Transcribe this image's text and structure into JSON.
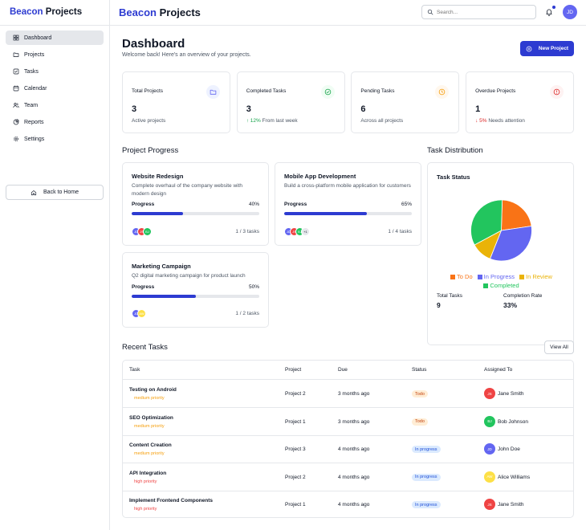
{
  "app": {
    "brand_a": "Beacon",
    "brand_b": "Projects",
    "accent": "#2d3bd1"
  },
  "sidebar": {
    "items": [
      {
        "label": "Dashboard",
        "icon": "grid-icon",
        "active": true
      },
      {
        "label": "Projects",
        "icon": "folder-icon"
      },
      {
        "label": "Tasks",
        "icon": "check-square-icon"
      },
      {
        "label": "Calendar",
        "icon": "calendar-icon"
      },
      {
        "label": "Team",
        "icon": "users-icon"
      },
      {
        "label": "Reports",
        "icon": "pie-chart-icon"
      },
      {
        "label": "Settings",
        "icon": "gear-icon"
      }
    ],
    "back_label": "Back to Home"
  },
  "header": {
    "search_placeholder": "Search...",
    "user_initials": "JD"
  },
  "page": {
    "title": "Dashboard",
    "subtitle": "Welcome back! Here's an overview of your projects.",
    "new_project_label": "New Project"
  },
  "stats": [
    {
      "label": "Total Projects",
      "value": "3",
      "sub": "Active projects",
      "sub_color": "#4b5563",
      "icon": "folder-icon",
      "icon_color": "#6366f1",
      "icon_bg": "#eef2ff"
    },
    {
      "label": "Completed Tasks",
      "value": "3",
      "sub_trend": "↑ 12%",
      "sub": "From last week",
      "sub_color": "#16a34a",
      "icon": "check-circle-icon",
      "icon_color": "#16a34a",
      "icon_bg": "#f0fdf4"
    },
    {
      "label": "Pending Tasks",
      "value": "6",
      "sub": "Across all projects",
      "sub_color": "#4b5563",
      "icon": "clock-icon",
      "icon_color": "#f59e0b",
      "icon_bg": "#fff7ed"
    },
    {
      "label": "Overdue Projects",
      "value": "1",
      "sub_trend": "↓ 5%",
      "sub": "Needs attention",
      "sub_color": "#dc2626",
      "icon": "alert-circle-icon",
      "icon_color": "#dc2626",
      "icon_bg": "#fef2f2"
    }
  ],
  "project_progress": {
    "title": "Project Progress",
    "progress_label": "Progress",
    "projects": [
      {
        "name": "Website Redesign",
        "desc": "Complete overhaul of the company website with modern design",
        "progress": 40,
        "progress_text": "40%",
        "tasks": "1 / 3 tasks",
        "avatars": [
          {
            "i": "JD",
            "c": "#6366f1"
          },
          {
            "i": "JS",
            "c": "#ef4444"
          },
          {
            "i": "BJ",
            "c": "#22c55e"
          }
        ]
      },
      {
        "name": "Mobile App Development",
        "desc": "Build a cross-platform mobile application for customers",
        "progress": 65,
        "progress_text": "65%",
        "tasks": "1 / 4 tasks",
        "avatars": [
          {
            "i": "JD",
            "c": "#6366f1"
          },
          {
            "i": "JS",
            "c": "#ef4444"
          },
          {
            "i": "BJ",
            "c": "#22c55e"
          }
        ],
        "more": "+1"
      },
      {
        "name": "Marketing Campaign",
        "desc": "Q2 digital marketing campaign for product launch",
        "progress": 50,
        "progress_text": "50%",
        "tasks": "1 / 2 tasks",
        "avatars": [
          {
            "i": "JD",
            "c": "#6366f1"
          },
          {
            "i": "AW",
            "c": "#fde047"
          }
        ]
      }
    ]
  },
  "task_distribution": {
    "title": "Task Distribution",
    "card_title": "Task Status",
    "total_label": "Total Tasks",
    "total_value": "9",
    "rate_label": "Completion Rate",
    "rate_value": "33%"
  },
  "chart_data": {
    "type": "pie",
    "title": "Task Status",
    "categories": [
      "To Do",
      "In Progress",
      "In Review",
      "Completed"
    ],
    "values": [
      2,
      3,
      1,
      3
    ],
    "colors": [
      "#f97316",
      "#6366f1",
      "#eab308",
      "#22c55e"
    ],
    "legend": "bottom"
  },
  "recent_tasks": {
    "title": "Recent Tasks",
    "view_all_label": "View All",
    "columns": [
      "Task",
      "Project",
      "Due",
      "Status",
      "Assigned To"
    ],
    "rows": [
      {
        "task": "Testing on Android",
        "priority": "medium priority",
        "priority_color": "#f59e0b",
        "project": "Project 2",
        "due": "3 months ago",
        "status": "Todo",
        "status_bg": "#ffedd5",
        "status_fg": "#c2410c",
        "assignee": "Jane Smith",
        "initials": "JS",
        "avatar_color": "#ef4444"
      },
      {
        "task": "SEO Optimization",
        "priority": "medium priority",
        "priority_color": "#f59e0b",
        "project": "Project 1",
        "due": "3 months ago",
        "status": "Todo",
        "status_bg": "#ffedd5",
        "status_fg": "#c2410c",
        "assignee": "Bob Johnson",
        "initials": "BJ",
        "avatar_color": "#22c55e"
      },
      {
        "task": "Content Creation",
        "priority": "medium priority",
        "priority_color": "#f59e0b",
        "project": "Project 3",
        "due": "4 months ago",
        "status": "In progress",
        "status_bg": "#dbeafe",
        "status_fg": "#1d4ed8",
        "assignee": "John Doe",
        "initials": "JD",
        "avatar_color": "#6366f1"
      },
      {
        "task": "API Integration",
        "priority": "high priority",
        "priority_color": "#ef4444",
        "project": "Project 2",
        "due": "4 months ago",
        "status": "In progress",
        "status_bg": "#dbeafe",
        "status_fg": "#1d4ed8",
        "assignee": "Alice Williams",
        "initials": "AW",
        "avatar_color": "#fde047"
      },
      {
        "task": "Implement Frontend Components",
        "priority": "high priority",
        "priority_color": "#ef4444",
        "project": "Project 1",
        "due": "4 months ago",
        "status": "In progress",
        "status_bg": "#dbeafe",
        "status_fg": "#1d4ed8",
        "assignee": "Jane Smith",
        "initials": "JS",
        "avatar_color": "#ef4444"
      }
    ]
  }
}
